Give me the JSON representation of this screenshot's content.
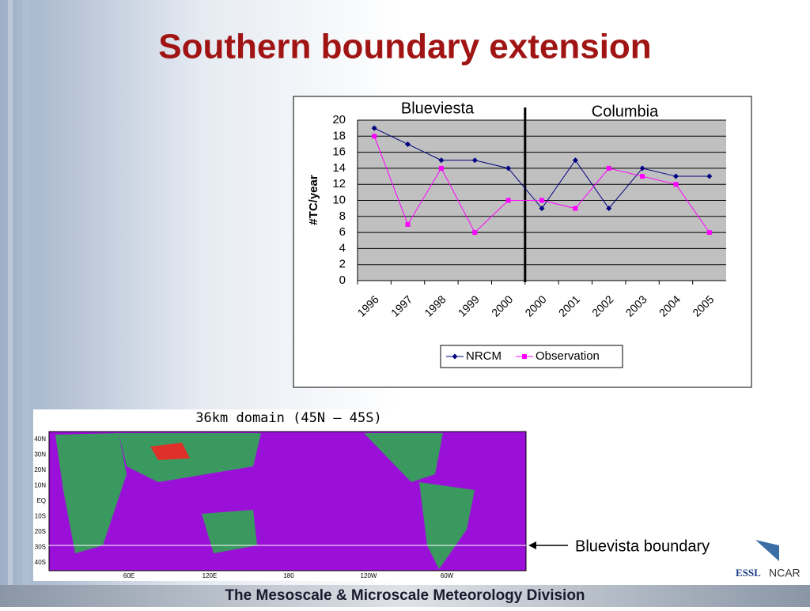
{
  "title": "Southern boundary extension",
  "chart_data": {
    "type": "line",
    "categories": [
      "1996",
      "1997",
      "1998",
      "1999",
      "2000",
      "2000",
      "2001",
      "2002",
      "2003",
      "2004",
      "2005"
    ],
    "series": [
      {
        "name": "NRCM",
        "color": "#000080",
        "marker": "diamond",
        "values": [
          19,
          17,
          15,
          15,
          14,
          9,
          15,
          9,
          14,
          13,
          13
        ]
      },
      {
        "name": "Observation",
        "color": "#ff00ff",
        "marker": "square",
        "values": [
          18,
          7,
          14,
          6,
          10,
          10,
          9,
          14,
          13,
          12,
          6
        ]
      }
    ],
    "ylabel": "#TC/year",
    "annotations": [
      "Blueviesta",
      "Columbia"
    ],
    "ylim": [
      0,
      20
    ],
    "yticks": [
      0,
      2,
      4,
      6,
      8,
      10,
      12,
      14,
      16,
      18,
      20
    ],
    "grid": true,
    "legend": "bottom"
  },
  "map": {
    "title": "36km domain (45N – 45S)",
    "lat_labels": [
      "40N",
      "30N",
      "20N",
      "10N",
      "EQ",
      "10S",
      "20S",
      "30S",
      "40S"
    ],
    "lon_labels": [
      "60E",
      "120E",
      "180",
      "120W",
      "60W"
    ],
    "boundary_label": "Bluevista boundary"
  },
  "logos": [
    "ESSL",
    "NCAR"
  ],
  "footer": "The Mesoscale & Microscale Meteorology Division"
}
